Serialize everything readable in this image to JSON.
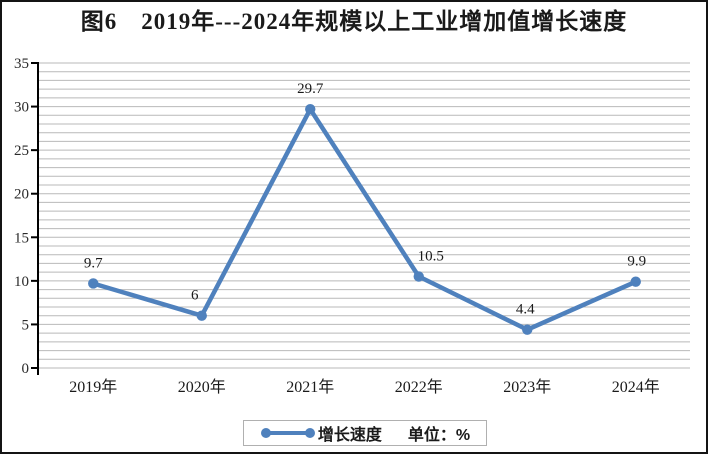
{
  "figure": {
    "title": "图6　2019年---2024年规模以上工业增加值增长速度"
  },
  "chart_data": {
    "type": "line",
    "title": "图6　2019年---2024年规模以上工业增加值增长速度",
    "categories": [
      "2019年",
      "2020年",
      "2021年",
      "2022年",
      "2023年",
      "2024年"
    ],
    "series": [
      {
        "name": "增长速度",
        "values": [
          9.7,
          6,
          29.7,
          10.5,
          4.4,
          9.9
        ],
        "point_labels": [
          "9.7",
          "6",
          "29.7",
          "10.5",
          "4.4",
          "9.9"
        ]
      }
    ],
    "xlabel": "",
    "ylabel": "",
    "ylim": [
      0,
      35
    ],
    "y_ticks": [
      0,
      5,
      10,
      15,
      20,
      25,
      30,
      35
    ],
    "y_minor_gridline_step": 1,
    "grid": "horizontal-minor",
    "legend": {
      "series_label": "增长速度",
      "unit_label": "单位：%",
      "position": "bottom-center"
    },
    "colors": {
      "line": "#4F81BD",
      "gridline": "#b9b9b9",
      "axis": "#000000",
      "text": "#1a1a1a",
      "legend_border": "#b0b0b0"
    }
  }
}
